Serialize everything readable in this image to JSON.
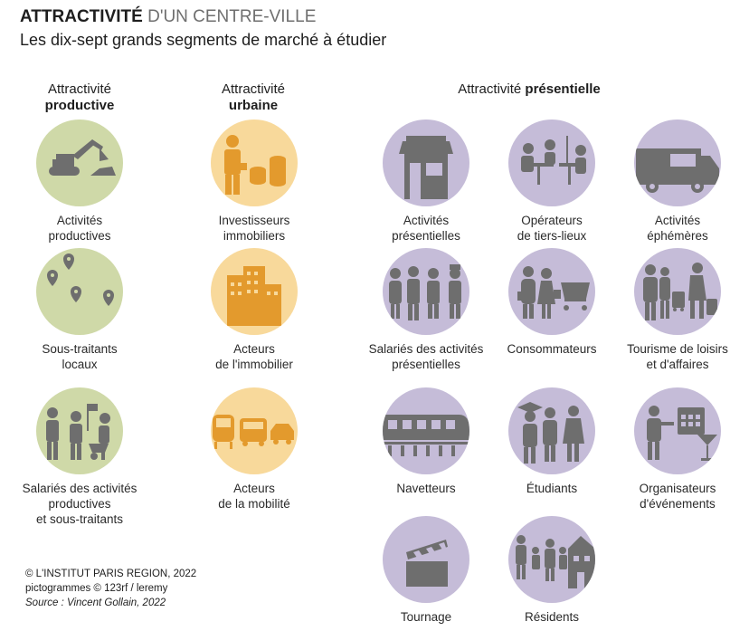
{
  "header": {
    "title_bold": "ATTRACTIVITÉ",
    "title_rest": " D'UN CENTRE-VILLE",
    "subtitle": "Les dix-sept grands segments de marché à étudier"
  },
  "columns": [
    {
      "prefix": "Attractivité",
      "bold": "productive"
    },
    {
      "prefix": "Attractivité",
      "bold": "urbaine"
    },
    {
      "prefix": "Attractivité ",
      "bold": "présentielle"
    }
  ],
  "colors": {
    "productive": "#cfd9a8",
    "urbaine": "#f8d99b",
    "presentielle": "#c5bcd8",
    "pictogram": "#6e6e6e",
    "pictogram_orange": "#e39a2d"
  },
  "segments": {
    "activites_productives": "Activités\nproductives",
    "sous_traitants": "Sous-traitants\nlocaux",
    "salaries_productives": "Salariés des activités\nproductives\net sous-traitants",
    "investisseurs": "Investisseurs\nimmobiliers",
    "acteurs_immobilier": "Acteurs\nde l'immobilier",
    "acteurs_mobilite": "Acteurs\nde la mobilité",
    "activites_presentielles": "Activités\nprésentielles",
    "tiers_lieux": "Opérateurs\nde tiers-lieux",
    "ephemeres": "Activités\néphémères",
    "salaries_presentielles": "Salariés des activités\nprésentielles",
    "consommateurs": "Consommateurs",
    "tourisme": "Tourisme de loisirs\net d'affaires",
    "navetteurs": "Navetteurs",
    "etudiants": "Étudiants",
    "organisateurs": "Organisateurs\nd'événements",
    "tournage": "Tournage",
    "residents": "Résidents"
  },
  "footer": {
    "copyright": "© L'INSTITUT PARIS REGION, 2022",
    "pictos": "pictogrammes © 123rf / leremy",
    "source": "Source : Vincent Gollain, 2022"
  }
}
